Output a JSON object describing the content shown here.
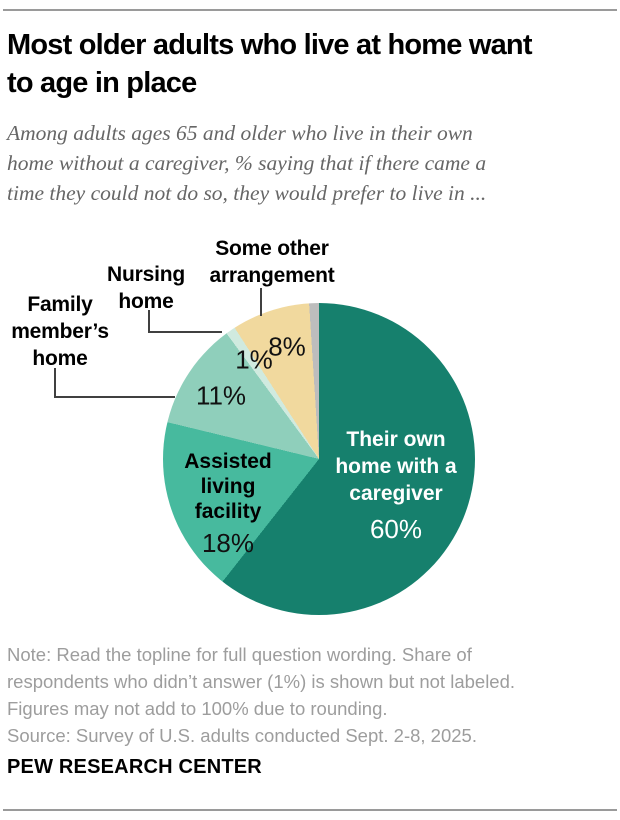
{
  "header": {
    "title_lines": [
      "Most older adults who live at home want",
      "to age in place"
    ],
    "subtitle_lines": [
      "Among adults ages 65 and older who live in their own",
      "home without a caregiver, % saying that if there came a",
      "time they could not do so, they would prefer to live in ..."
    ]
  },
  "chart_data": {
    "type": "pie",
    "title": "Most older adults who live at home want to age in place",
    "units": "%",
    "start_angle_deg": 0,
    "direction": "clockwise",
    "slices": [
      {
        "label": "Their own home with a caregiver",
        "value": 60,
        "color": "#16806D"
      },
      {
        "label": "Assisted living facility",
        "value": 18,
        "color": "#47BA9E"
      },
      {
        "label": "Family member's home",
        "value": 11,
        "color": "#8FCFBB"
      },
      {
        "label": "Nursing home",
        "value": 1,
        "color": "#D0EADF"
      },
      {
        "label": "Some other arrangement",
        "value": 8,
        "color": "#F1D99E"
      },
      {
        "label": "Didn't answer (shown but not labeled)",
        "value": 1,
        "color": "#BDBDBD"
      }
    ]
  },
  "labels": {
    "some_other_lines": [
      "Some other",
      "arrangement"
    ],
    "nursing_lines": [
      "Nursing",
      "home"
    ],
    "family_lines": [
      "Family",
      "member’s",
      "home"
    ],
    "assisted_lines": [
      "Assisted",
      "living",
      "facility"
    ],
    "their_own_lines": [
      "Their own",
      "home with a",
      "caregiver"
    ],
    "pct": {
      "their_own": "60%",
      "assisted": "18%",
      "family": "11%",
      "nursing": "1%",
      "some_other": "8%"
    }
  },
  "notes": {
    "lines": [
      "Note: Read the topline for full question wording. Share of",
      "respondents who didn’t answer (1%) is shown but not labeled.",
      "Figures may not add to 100% due to rounding.",
      "Source: Survey of U.S. adults conducted Sept. 2-8, 2025."
    ]
  },
  "footer": {
    "brand": "PEW RESEARCH CENTER"
  }
}
